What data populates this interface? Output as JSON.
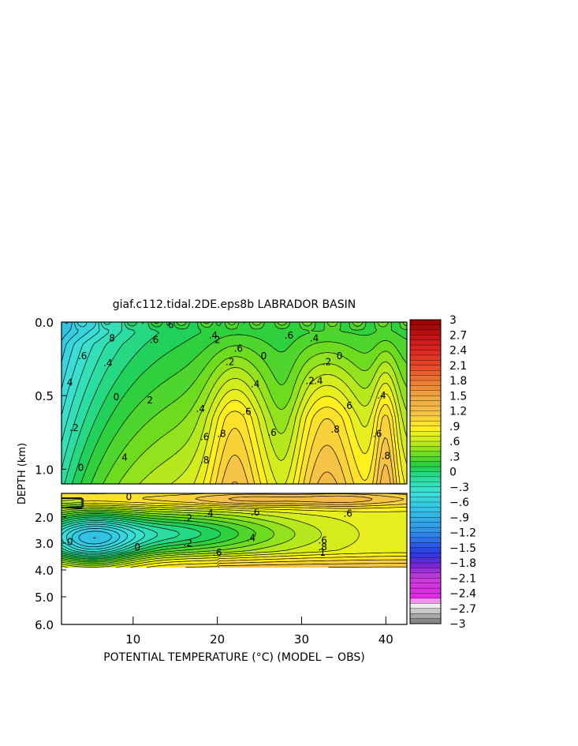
{
  "chart_data": {
    "type": "contour",
    "title": "giaf.c112.tidal.2DE.eps8b LABRADOR BASIN",
    "xlabel": "POTENTIAL TEMPERATURE (°C) (MODEL − OBS)",
    "ylabel": "DEPTH (km)",
    "x_ticks": [
      "10",
      "20",
      "30",
      "40"
    ],
    "x_tick_values": [
      10,
      20,
      30,
      40
    ],
    "xlim": [
      1.5,
      42.5
    ],
    "y_ticks_upper": [
      "0.0",
      "0.5",
      "1.0"
    ],
    "y_tick_values_upper": [
      0.0,
      0.5,
      1.0
    ],
    "ylim_upper": [
      0.0,
      1.1
    ],
    "y_ticks_lower": [
      "2.0",
      "3.0",
      "4.0",
      "5.0",
      "6.0"
    ],
    "y_tick_values_lower": [
      2.0,
      3.0,
      4.0,
      5.0,
      6.0
    ],
    "ylim_lower": [
      1.0,
      6.0
    ],
    "data_bottom_depth": 3.9,
    "colorbar": {
      "range": [
        -3,
        3
      ],
      "interval": 0.1,
      "tick_labels": [
        "3",
        "2.7",
        "2.4",
        "2.1",
        "1.8",
        "1.5",
        "1.2",
        ".9",
        ".6",
        ".3",
        "0",
        "−.3",
        "−.6",
        "−.9",
        "−1.2",
        "−1.5",
        "−1.8",
        "−2.1",
        "−2.4",
        "−2.7",
        "−3"
      ],
      "tick_values": [
        3,
        2.7,
        2.4,
        2.1,
        1.8,
        1.5,
        1.2,
        0.9,
        0.6,
        0.3,
        0,
        -0.3,
        -0.6,
        -0.9,
        -1.2,
        -1.5,
        -1.8,
        -2.1,
        -2.4,
        -2.7,
        -3
      ]
    },
    "contour_labels_upper": [
      {
        "text": "6",
        "x": 14.5,
        "y": 0.02
      },
      {
        "text": "8",
        "x": 7.5,
        "y": 0.11
      },
      {
        "text": ".6",
        "x": 4.0,
        "y": 0.23
      },
      {
        "text": ".6",
        "x": 12.5,
        "y": 0.12
      },
      {
        "text": ".4",
        "x": 7.0,
        "y": 0.28
      },
      {
        "text": "4",
        "x": 2.5,
        "y": 0.41
      },
      {
        "text": ".2",
        "x": 3.0,
        "y": 0.72
      },
      {
        "text": "0",
        "x": 3.8,
        "y": 0.99
      },
      {
        "text": "0",
        "x": 8.0,
        "y": 0.51
      },
      {
        "text": "2",
        "x": 12.0,
        "y": 0.53
      },
      {
        "text": "2",
        "x": 20.0,
        "y": 0.12
      },
      {
        "text": ".4",
        "x": 19.5,
        "y": 0.09
      },
      {
        "text": ".2",
        "x": 21.5,
        "y": 0.27
      },
      {
        "text": ".6",
        "x": 22.5,
        "y": 0.18
      },
      {
        "text": "0",
        "x": 25.5,
        "y": 0.23
      },
      {
        "text": ".4",
        "x": 24.5,
        "y": 0.42
      },
      {
        "text": ".4",
        "x": 18.0,
        "y": 0.59
      },
      {
        "text": ".6",
        "x": 18.5,
        "y": 0.78
      },
      {
        "text": ".8",
        "x": 20.5,
        "y": 0.76
      },
      {
        "text": ".8",
        "x": 18.5,
        "y": 0.94
      },
      {
        "text": "4",
        "x": 9.0,
        "y": 0.92
      },
      {
        "text": ".6",
        "x": 23.5,
        "y": 0.61
      },
      {
        "text": ".6",
        "x": 26.5,
        "y": 0.75
      },
      {
        "text": ".6",
        "x": 28.5,
        "y": 0.09
      },
      {
        "text": ".4",
        "x": 31.5,
        "y": 0.11
      },
      {
        "text": ".2",
        "x": 31.0,
        "y": 0.4
      },
      {
        "text": ".4",
        "x": 32.0,
        "y": 0.4
      },
      {
        "text": "0",
        "x": 34.5,
        "y": 0.23
      },
      {
        "text": ".2",
        "x": 33.0,
        "y": 0.27
      },
      {
        "text": ".6",
        "x": 35.5,
        "y": 0.57
      },
      {
        "text": ".8",
        "x": 34.0,
        "y": 0.73
      },
      {
        "text": ".4",
        "x": 39.5,
        "y": 0.5
      },
      {
        "text": ".6",
        "x": 39.0,
        "y": 0.76
      },
      {
        "text": ".8",
        "x": 40.0,
        "y": 0.91
      }
    ],
    "contour_labels_lower": [
      {
        "text": "0",
        "x": 9.5,
        "y": 1.15
      },
      {
        "text": ".2",
        "x": 16.5,
        "y": 2.05
      },
      {
        "text": ".4",
        "x": 19.0,
        "y": 1.85
      },
      {
        "text": ".6",
        "x": 24.5,
        "y": 1.8
      },
      {
        "text": ".6",
        "x": 35.5,
        "y": 1.85
      },
      {
        "text": "0",
        "x": 2.5,
        "y": 2.95
      },
      {
        "text": "0",
        "x": 10.5,
        "y": 3.15
      },
      {
        "text": ".2",
        "x": 16.5,
        "y": 3.0
      },
      {
        "text": ".4",
        "x": 24.0,
        "y": 2.8
      },
      {
        "text": ".6",
        "x": 20.0,
        "y": 3.35
      },
      {
        "text": ".6",
        "x": 32.5,
        "y": 2.9
      },
      {
        "text": ".8",
        "x": 32.5,
        "y": 3.15
      },
      {
        "text": "1",
        "x": 32.5,
        "y": 3.35
      }
    ]
  }
}
